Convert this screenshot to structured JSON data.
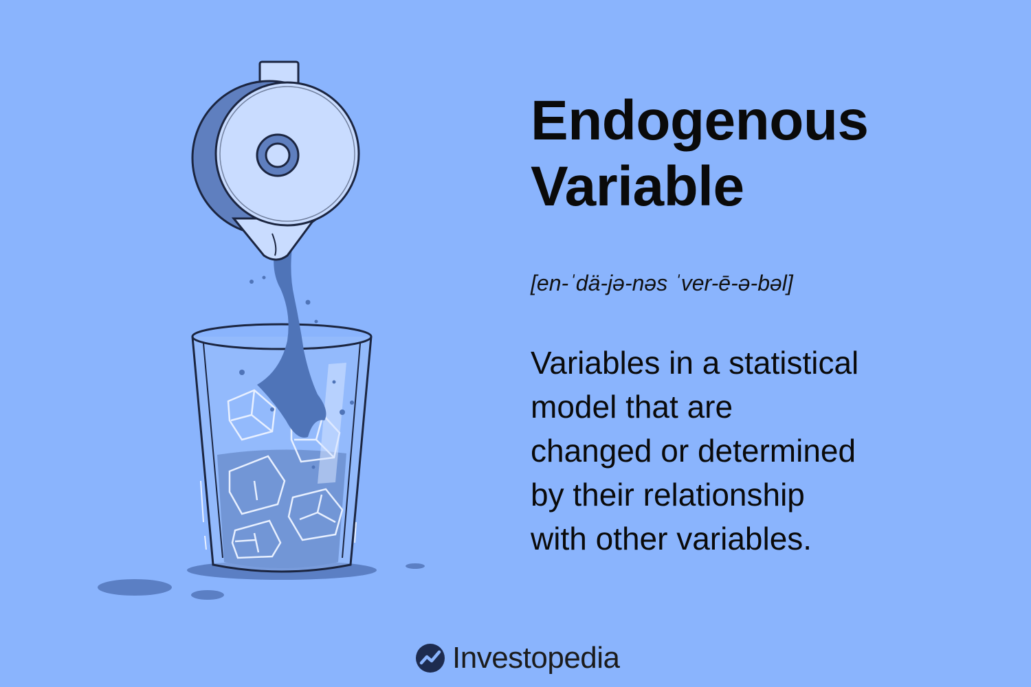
{
  "term": {
    "title_lines": [
      "Endogenous",
      "Variable"
    ],
    "pronunciation": "[en-ˈdä-jə-nəs ˈver-ē-ə-bəl]"
  },
  "definition_lines": [
    "Variables in a statistical",
    "model that are",
    "changed or determined",
    "by their relationship",
    "with other variables."
  ],
  "brand": {
    "name": "Investopedia",
    "logo_icon": "investopedia-logo-icon"
  },
  "illustration": {
    "subject": "pitcher-pouring-into-glass-with-ice",
    "colors": {
      "background": "#8ab4fd",
      "liquid": "#4f74b8",
      "outline": "#1b2540",
      "pitcher_face": "#c9dcff",
      "pitcher_shade": "#5f7fbf"
    }
  }
}
